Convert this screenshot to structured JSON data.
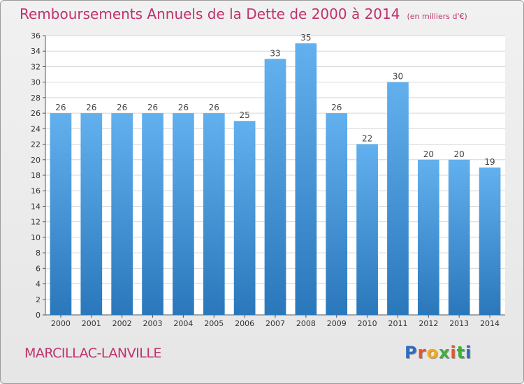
{
  "header": {
    "title": "Remboursements Annuels de la Dette de 2000 à 2014",
    "unit": "(en milliers d'€)"
  },
  "footer": {
    "commune": "MARCILLAC-LANVILLE",
    "brand": "Proxiti"
  },
  "colors": {
    "title": "#c0316c",
    "bar_top": "#62b0ee",
    "bar_bottom": "#2a78bb",
    "grid": "#d6d6d6"
  },
  "chart_data": {
    "type": "bar",
    "title": "Remboursements Annuels de la Dette de 2000 à 2014",
    "subtitle": "(en milliers d'€)",
    "xlabel": "",
    "ylabel": "",
    "categories": [
      "2000",
      "2001",
      "2002",
      "2003",
      "2004",
      "2005",
      "2006",
      "2007",
      "2008",
      "2009",
      "2010",
      "2011",
      "2012",
      "2013",
      "2014"
    ],
    "values": [
      26,
      26,
      26,
      26,
      26,
      26,
      25,
      33,
      35,
      26,
      22,
      30,
      20,
      20,
      19
    ],
    "ylim": [
      0,
      36
    ],
    "yticks": [
      0,
      2,
      4,
      6,
      8,
      10,
      12,
      14,
      16,
      18,
      20,
      22,
      24,
      26,
      28,
      30,
      32,
      34,
      36
    ],
    "grid": true,
    "data_labels": true
  }
}
